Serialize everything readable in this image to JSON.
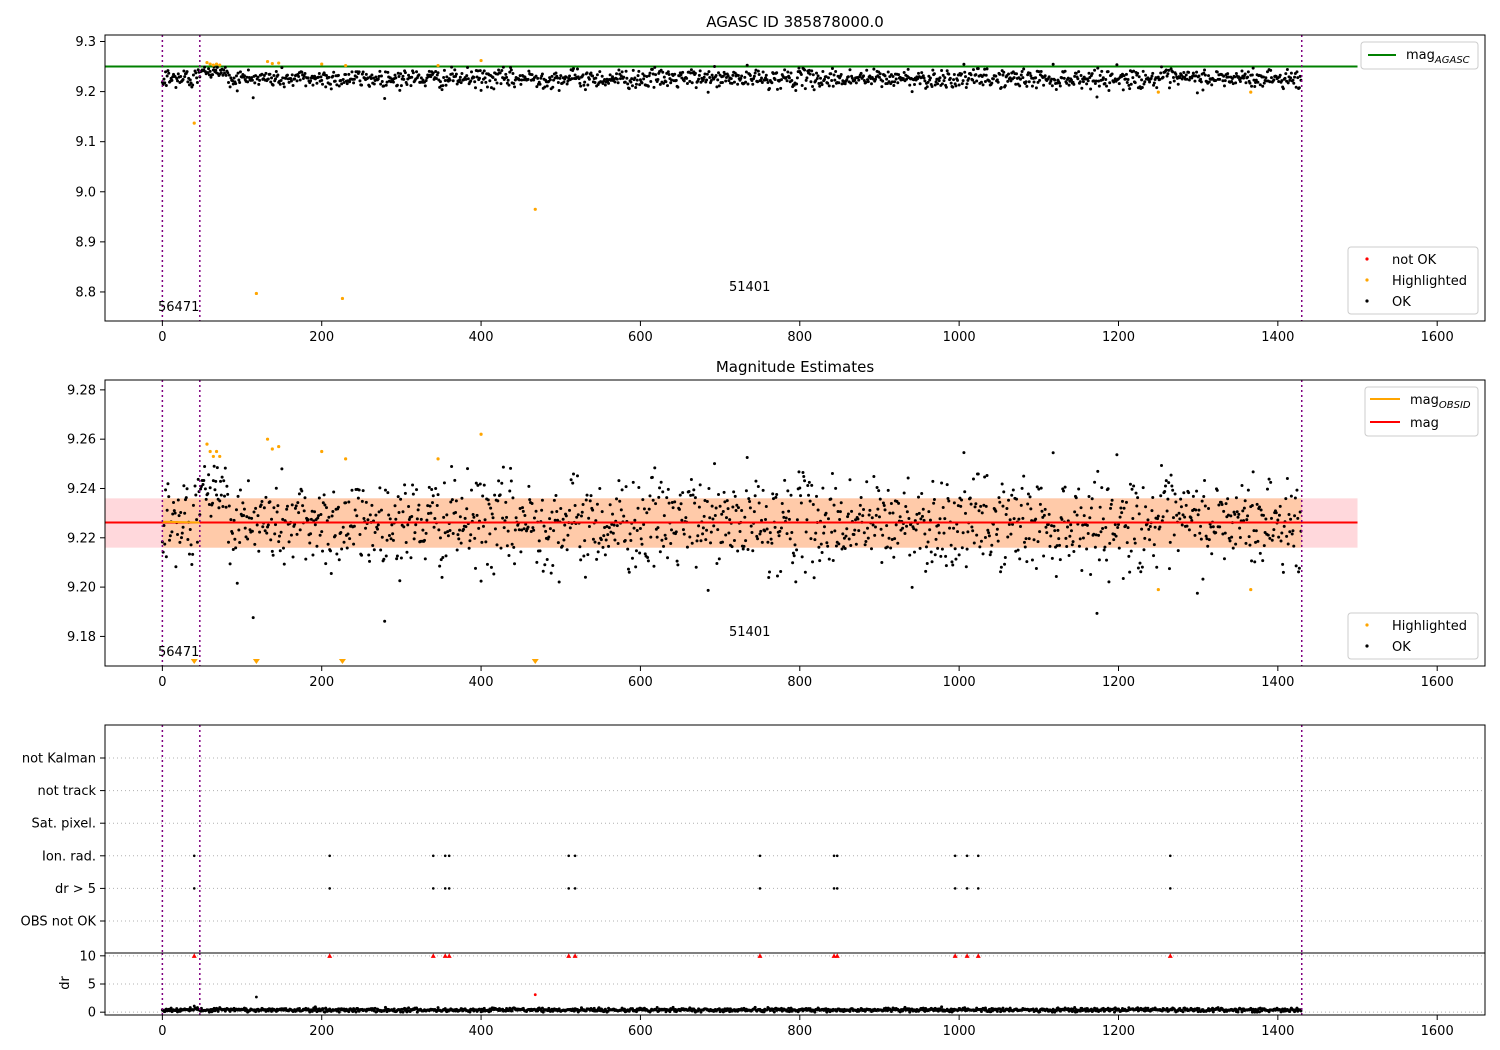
{
  "figure": {
    "annotations": {
      "left": "56471",
      "center": "51401"
    }
  },
  "colors": {
    "ok": "#000000",
    "highlighted": "#ffa500",
    "not_ok": "#ff0000",
    "agasc_line": "#008000",
    "mag_line": "#ff0000",
    "mag_obsid": "#ffa500",
    "band_inner": "#ffc8a0",
    "band_outer": "#ffd8dc",
    "obs_vline": "#800080"
  },
  "chart_data": [
    {
      "id": "top",
      "type": "scatter",
      "title": "AGASC ID 385878000.0",
      "xlim": [
        -72,
        1660
      ],
      "ylim": [
        8.742,
        9.313
      ],
      "xticks": [
        0,
        200,
        400,
        600,
        800,
        1000,
        1200,
        1400,
        1600
      ],
      "yticks": [
        8.8,
        8.9,
        9.0,
        9.1,
        9.2,
        9.3
      ],
      "ytick_labels": [
        "8.8",
        "8.9",
        "9.0",
        "9.1",
        "9.2",
        "9.3"
      ],
      "mag_agasc": 9.25,
      "mag_agasc_x_range": [
        -72,
        1500
      ],
      "obs_boundaries": [
        0,
        47,
        1430
      ],
      "ok_series": {
        "n": 1430,
        "center": 9.226,
        "spread": 0.0095
      },
      "highlighted_points": [
        [
          40,
          9.137
        ],
        [
          56,
          9.258
        ],
        [
          60,
          9.255
        ],
        [
          64,
          9.253
        ],
        [
          68,
          9.255
        ],
        [
          72,
          9.253
        ],
        [
          118,
          8.797
        ],
        [
          132,
          9.26
        ],
        [
          138,
          9.256
        ],
        [
          146,
          9.257
        ],
        [
          200,
          9.255
        ],
        [
          226,
          8.787
        ],
        [
          230,
          9.252
        ],
        [
          346,
          9.252
        ],
        [
          400,
          9.262
        ],
        [
          468,
          8.965
        ],
        [
          1250,
          9.199
        ],
        [
          1366,
          9.199
        ]
      ],
      "legend_line": [
        "mag",
        "AGASC"
      ],
      "legend_points": [
        "not OK",
        "Highlighted",
        "OK"
      ]
    },
    {
      "id": "middle",
      "type": "scatter",
      "title": "Magnitude Estimates",
      "xlim": [
        -72,
        1660
      ],
      "ylim": [
        9.168,
        9.284
      ],
      "xticks": [
        0,
        200,
        400,
        600,
        800,
        1000,
        1200,
        1400,
        1600
      ],
      "yticks": [
        9.18,
        9.2,
        9.22,
        9.24,
        9.26,
        9.28
      ],
      "ytick_labels": [
        "9.18",
        "9.20",
        "9.22",
        "9.24",
        "9.26",
        "9.28"
      ],
      "mag": 9.2262,
      "band": [
        9.216,
        9.236
      ],
      "band_x_range": [
        -72,
        1500
      ],
      "mag_obsid": [
        [
          0,
          9.2265
        ],
        [
          47,
          9.2262
        ]
      ],
      "obs_boundaries": [
        0,
        47,
        1430
      ],
      "ok_series": {
        "n": 1430,
        "center": 9.226,
        "spread": 0.0095
      },
      "highlighted_points": [
        [
          56,
          9.258
        ],
        [
          60,
          9.255
        ],
        [
          64,
          9.253
        ],
        [
          68,
          9.255
        ],
        [
          72,
          9.253
        ],
        [
          132,
          9.26
        ],
        [
          138,
          9.256
        ],
        [
          146,
          9.257
        ],
        [
          200,
          9.255
        ],
        [
          230,
          9.252
        ],
        [
          346,
          9.252
        ],
        [
          400,
          9.262
        ],
        [
          1250,
          9.199
        ],
        [
          1366,
          9.199
        ]
      ],
      "offscale_markers_x": [
        40,
        118,
        226,
        468
      ],
      "legend_lines": [
        [
          "mag",
          "OBSID"
        ],
        [
          "mag",
          ""
        ]
      ],
      "legend_points": [
        "Highlighted",
        "OK"
      ]
    },
    {
      "id": "flags",
      "type": "scatter",
      "xlim": [
        -72,
        1660
      ],
      "categories": [
        "not Kalman",
        "not track",
        "Sat. pixel.",
        "Ion. rad.",
        "dr > 5",
        "OBS not OK"
      ],
      "flagged_x": [
        40,
        210,
        340,
        355,
        360,
        510,
        518,
        750,
        843,
        847,
        995,
        1010,
        1024,
        1265
      ],
      "flag_rows": [
        "Ion. rad.",
        "dr > 5"
      ],
      "obs_boundaries": [
        0,
        47,
        1430
      ]
    },
    {
      "id": "dr",
      "type": "scatter",
      "xlim": [
        -72,
        1660
      ],
      "ylim": [
        -0.5,
        10.5
      ],
      "ylabel": "dr",
      "yticks": [
        0,
        5,
        10
      ],
      "ytick_labels": [
        "0",
        "5",
        "10"
      ],
      "xticks": [
        0,
        200,
        400,
        600,
        800,
        1000,
        1200,
        1400,
        1600
      ],
      "dr_typical": 0.4,
      "dr_outliers": [
        [
          118,
          2.7
        ],
        [
          468,
          3.1
        ],
        [
          40,
          1.1
        ]
      ],
      "clipped_x": [
        40,
        210,
        340,
        355,
        360,
        510,
        518,
        750,
        843,
        847,
        995,
        1010,
        1024,
        1265
      ],
      "obs_boundaries": [
        0,
        47,
        1430
      ]
    }
  ]
}
